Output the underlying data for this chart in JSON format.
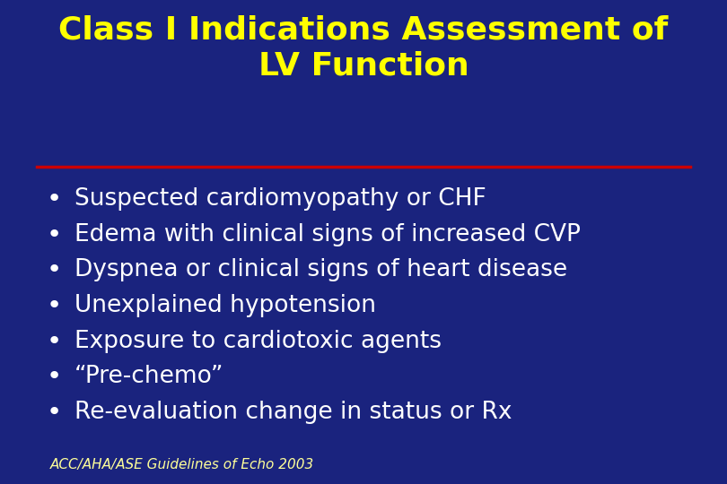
{
  "title_line1": "Class I Indications Assessment of",
  "title_line2": "LV Function",
  "title_color": "#FFFF00",
  "background_color": "#1a237e",
  "bullet_color": "#FFFFFF",
  "bullet_points": [
    "Suspected cardiomyopathy or CHF",
    "Edema with clinical signs of increased CVP",
    "Dyspnea or clinical signs of heart disease",
    "Unexplained hypotension",
    "Exposure to cardiotoxic agents",
    "“Pre-chemo”",
    "Re-evaluation change in status or Rx"
  ],
  "separator_color": "#cc0000",
  "footer_text": "ACC/AHA/ASE Guidelines of Echo 2003",
  "footer_color": "#FFFF99",
  "title_fontsize": 26,
  "bullet_fontsize": 19,
  "footer_fontsize": 11
}
